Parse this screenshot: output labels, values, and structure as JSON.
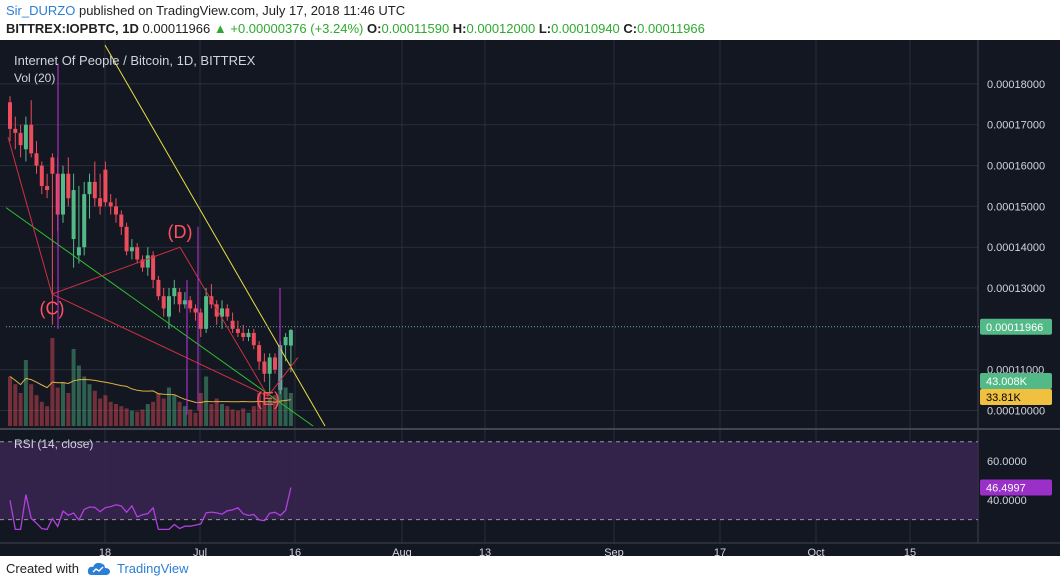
{
  "header": {
    "author": "Sir_DURZO",
    "published_text": "published on TradingView.com, July 17, 2018 11:46 UTC",
    "symbol": "BITTREX:IOPBTC, 1D",
    "last": "0.00011966",
    "change": "+0.00000376 (+3.24%)",
    "open_label": "O:",
    "open": "0.00011590",
    "high_label": "H:",
    "high": "0.00012000",
    "low_label": "L:",
    "low": "0.00010940",
    "close_label": "C:",
    "close": "0.00011966"
  },
  "colors": {
    "background": "#131722",
    "up": "#53b987",
    "down": "#eb4d5c",
    "volume_ma": "#e0b040",
    "rsi": "#b040e0",
    "rsi_band": "#3a2550",
    "trendline_yellow": "#e8e040",
    "trendline_green": "#30c030",
    "trendline_red": "#d03040",
    "wave_labels": "#ff5060",
    "price_badge": "#53b987",
    "vol_ma_badge": "#f0c040",
    "rsi_badge": "#9b30c8"
  },
  "chart_data": {
    "type": "candlestick",
    "title": "Internet Of People / Bitcoin, 1D, BITTREX",
    "volume_label": "Vol (20)",
    "rsi_label": "RSI (14, close)",
    "price_axis": {
      "ticks": [
        "0.00018000",
        "0.00017000",
        "0.00016000",
        "0.00015000",
        "0.00014000",
        "0.00013000",
        "0.00011000",
        "0.00010000"
      ],
      "range": [
        9.62e-05,
        0.0001888
      ]
    },
    "time_axis": {
      "ticks": [
        "18",
        "Jul",
        "16",
        "Aug",
        "13",
        "Sep",
        "17",
        "Oct",
        "15"
      ]
    },
    "last_price_badge": "0.00011966",
    "volume_badge": "43.008K",
    "volume_ma_badge": "33.81K",
    "rsi_axis": {
      "ticks": [
        "60.0000",
        "40.0000"
      ],
      "range": [
        18,
        75
      ],
      "upper_band": 70,
      "lower_band": 30
    },
    "rsi_badge": "46.4997",
    "wave_labels": [
      "(C)",
      "(D)",
      "(E)"
    ],
    "candles": [
      {
        "o": 0.0001755,
        "h": 0.000177,
        "l": 0.000166,
        "c": 0.000169,
        "v": 0.45
      },
      {
        "o": 0.000169,
        "h": 0.000172,
        "l": 0.000164,
        "c": 0.000168,
        "v": 0.38
      },
      {
        "o": 0.000168,
        "h": 0.00017,
        "l": 0.000162,
        "c": 0.000165,
        "v": 0.3
      },
      {
        "o": 0.000164,
        "h": 0.000172,
        "l": 0.000161,
        "c": 0.00017,
        "v": 0.6
      },
      {
        "o": 0.00017,
        "h": 0.000176,
        "l": 0.000162,
        "c": 0.000163,
        "v": 0.38
      },
      {
        "o": 0.000163,
        "h": 0.000166,
        "l": 0.000158,
        "c": 0.00016,
        "v": 0.28
      },
      {
        "o": 0.00016,
        "h": 0.000161,
        "l": 0.000153,
        "c": 0.000155,
        "v": 0.22
      },
      {
        "o": 0.000155,
        "h": 0.000158,
        "l": 0.000152,
        "c": 0.000154,
        "v": 0.18
      },
      {
        "o": 0.000162,
        "h": 0.000163,
        "l": 0.000121,
        "c": 0.000158,
        "v": 0.8
      },
      {
        "o": 0.000158,
        "h": 0.000162,
        "l": 0.000144,
        "c": 0.000148,
        "v": 0.35
      },
      {
        "o": 0.000148,
        "h": 0.00016,
        "l": 0.000146,
        "c": 0.000158,
        "v": 0.4
      },
      {
        "o": 0.000158,
        "h": 0.000162,
        "l": 0.00015,
        "c": 0.000152,
        "v": 0.3
      },
      {
        "o": 0.000142,
        "h": 0.000158,
        "l": 0.000135,
        "c": 0.000154,
        "v": 0.7
      },
      {
        "o": 0.000138,
        "h": 0.000155,
        "l": 0.000136,
        "c": 0.00014,
        "v": 0.55
      },
      {
        "o": 0.00014,
        "h": 0.000156,
        "l": 0.000138,
        "c": 0.000153,
        "v": 0.45
      },
      {
        "o": 0.000153,
        "h": 0.000158,
        "l": 0.000147,
        "c": 0.000156,
        "v": 0.38
      },
      {
        "o": 0.000156,
        "h": 0.000161,
        "l": 0.00015,
        "c": 0.000152,
        "v": 0.32
      },
      {
        "o": 0.000152,
        "h": 0.000158,
        "l": 0.000148,
        "c": 0.00015,
        "v": 0.25
      },
      {
        "o": 0.000159,
        "h": 0.000161,
        "l": 0.00015,
        "c": 0.000151,
        "v": 0.28
      },
      {
        "o": 0.000151,
        "h": 0.000153,
        "l": 0.000148,
        "c": 0.00015,
        "v": 0.22
      },
      {
        "o": 0.00015,
        "h": 0.000152,
        "l": 0.000146,
        "c": 0.000148,
        "v": 0.2
      },
      {
        "o": 0.000148,
        "h": 0.000149,
        "l": 0.000143,
        "c": 0.000145,
        "v": 0.18
      },
      {
        "o": 0.000145,
        "h": 0.000146,
        "l": 0.000138,
        "c": 0.000139,
        "v": 0.16
      },
      {
        "o": 0.000139,
        "h": 0.000142,
        "l": 0.000137,
        "c": 0.00014,
        "v": 0.14
      },
      {
        "o": 0.00014,
        "h": 0.000141,
        "l": 0.000136,
        "c": 0.000137,
        "v": 0.13
      },
      {
        "o": 0.000137,
        "h": 0.000138,
        "l": 0.000134,
        "c": 0.000135,
        "v": 0.15
      },
      {
        "o": 0.000135,
        "h": 0.00014,
        "l": 0.000133,
        "c": 0.000138,
        "v": 0.2
      },
      {
        "o": 0.000138,
        "h": 0.000139,
        "l": 0.00013,
        "c": 0.000132,
        "v": 0.22
      },
      {
        "o": 0.000132,
        "h": 0.000133,
        "l": 0.000127,
        "c": 0.000128,
        "v": 0.3
      },
      {
        "o": 0.000128,
        "h": 0.00013,
        "l": 0.000123,
        "c": 0.000125,
        "v": 0.25
      },
      {
        "o": 0.000123,
        "h": 0.00013,
        "l": 0.00012,
        "c": 0.000128,
        "v": 0.35
      },
      {
        "o": 0.000128,
        "h": 0.000132,
        "l": 0.000126,
        "c": 0.00013,
        "v": 0.28
      },
      {
        "o": 0.000129,
        "h": 0.00013,
        "l": 0.000124,
        "c": 0.000126,
        "v": 0.22
      },
      {
        "o": 0.000126,
        "h": 0.000129,
        "l": 0.000125,
        "c": 0.000127,
        "v": 0.18
      },
      {
        "o": 0.000127,
        "h": 0.000128,
        "l": 0.000124,
        "c": 0.000125,
        "v": 0.15
      },
      {
        "o": 0.000125,
        "h": 0.000126,
        "l": 0.000122,
        "c": 0.000124,
        "v": 0.12
      },
      {
        "o": 0.000124,
        "h": 0.000125,
        "l": 0.000118,
        "c": 0.00012,
        "v": 0.3
      },
      {
        "o": 0.00012,
        "h": 0.00013,
        "l": 0.000119,
        "c": 0.000128,
        "v": 0.45
      },
      {
        "o": 0.000128,
        "h": 0.000131,
        "l": 0.000125,
        "c": 0.000126,
        "v": 0.2
      },
      {
        "o": 0.000126,
        "h": 0.000127,
        "l": 0.000121,
        "c": 0.000123,
        "v": 0.25
      },
      {
        "o": 0.000123,
        "h": 0.000127,
        "l": 0.00012,
        "c": 0.000125,
        "v": 0.2
      },
      {
        "o": 0.000125,
        "h": 0.000126,
        "l": 0.000122,
        "c": 0.000123,
        "v": 0.18
      },
      {
        "o": 0.000122,
        "h": 0.000124,
        "l": 0.000119,
        "c": 0.00012,
        "v": 0.15
      },
      {
        "o": 0.00012,
        "h": 0.000122,
        "l": 0.000118,
        "c": 0.000119,
        "v": 0.14
      },
      {
        "o": 0.000119,
        "h": 0.000121,
        "l": 0.000117,
        "c": 0.000118,
        "v": 0.16
      },
      {
        "o": 0.000118,
        "h": 0.00012,
        "l": 0.000117,
        "c": 0.000119,
        "v": 0.12
      },
      {
        "o": 0.000119,
        "h": 0.00012,
        "l": 0.000115,
        "c": 0.000116,
        "v": 0.18
      },
      {
        "o": 0.000116,
        "h": 0.000117,
        "l": 0.00011,
        "c": 0.000112,
        "v": 0.3
      },
      {
        "o": 0.000112,
        "h": 0.000114,
        "l": 0.000107,
        "c": 0.000109,
        "v": 0.22
      },
      {
        "o": 0.000109,
        "h": 0.000114,
        "l": 0.000104,
        "c": 0.000113,
        "v": 0.25
      },
      {
        "o": 0.000113,
        "h": 0.000114,
        "l": 0.000109,
        "c": 0.00011,
        "v": 0.28
      },
      {
        "o": 0.000105,
        "h": 0.000117,
        "l": 0.000104,
        "c": 0.000116,
        "v": 0.48
      },
      {
        "o": 0.000116,
        "h": 0.000119,
        "l": 0.000112,
        "c": 0.000118,
        "v": 0.35
      },
      {
        "o": 0.0001159,
        "h": 0.00012,
        "l": 0.0001094,
        "c": 0.0001197,
        "v": 0.3
      }
    ]
  },
  "footer": {
    "created_with": "Created with",
    "brand": "TradingView"
  }
}
